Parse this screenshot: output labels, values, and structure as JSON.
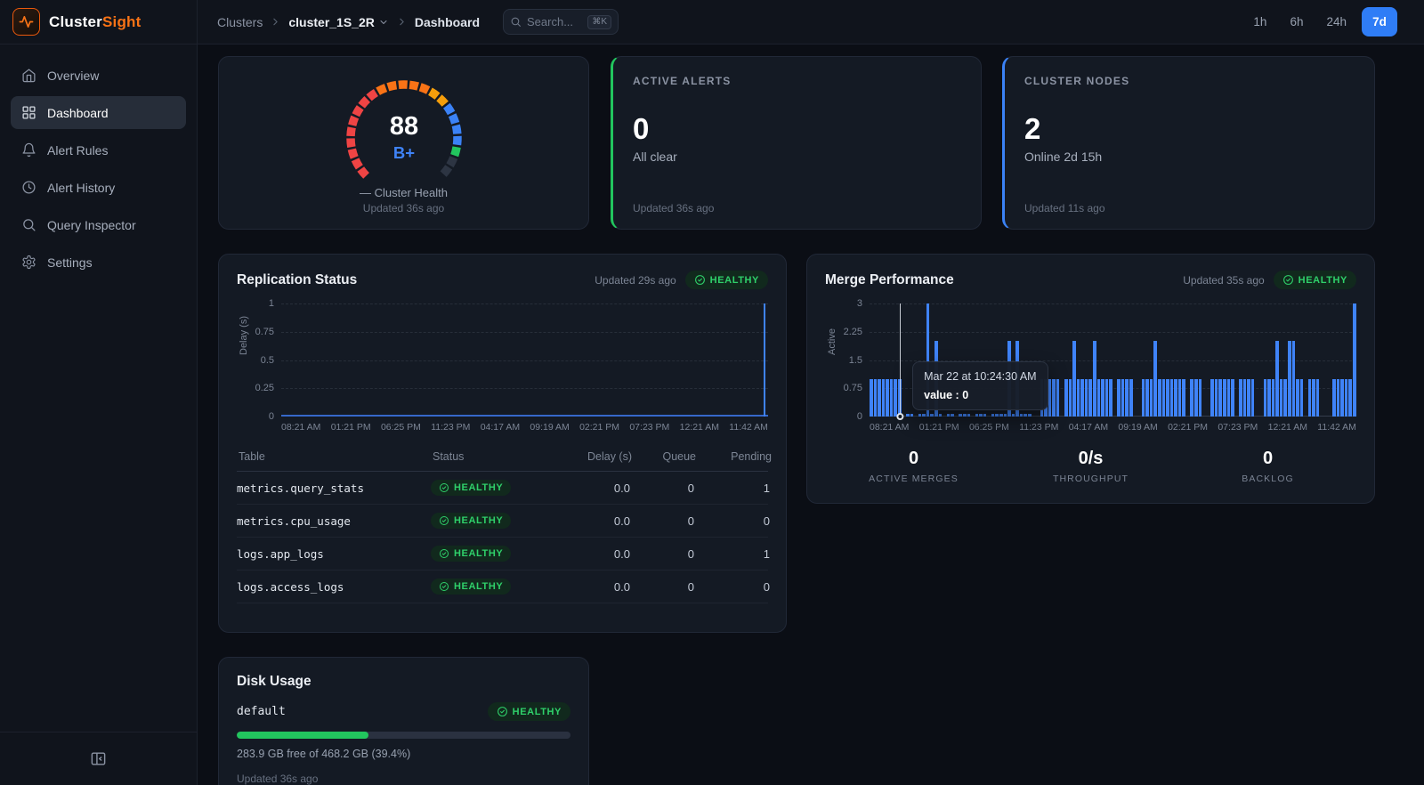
{
  "colors": {
    "blue": "#3f83f8",
    "green": "#22c55e",
    "orange": "#f97316",
    "red": "#ef4444"
  },
  "header": {
    "brand": {
      "primary": "Cluster",
      "accent": "Sight"
    },
    "breadcrumbs": {
      "root": "Clusters",
      "cluster": "cluster_1S_2R",
      "page": "Dashboard"
    },
    "search": {
      "placeholder": "Search...",
      "shortcut": "⌘K"
    },
    "time_ranges": [
      {
        "label": "1h",
        "active": false
      },
      {
        "label": "6h",
        "active": false
      },
      {
        "label": "24h",
        "active": false
      },
      {
        "label": "7d",
        "active": true
      }
    ]
  },
  "sidebar": {
    "items": [
      {
        "label": "Overview",
        "icon": "home",
        "active": false
      },
      {
        "label": "Dashboard",
        "icon": "grid",
        "active": true
      },
      {
        "label": "Alert Rules",
        "icon": "bell",
        "active": false
      },
      {
        "label": "Alert History",
        "icon": "clock",
        "active": false
      },
      {
        "label": "Query Inspector",
        "icon": "search",
        "active": false
      },
      {
        "label": "Settings",
        "icon": "gear",
        "active": false
      }
    ]
  },
  "health_card": {
    "score": "88",
    "grade": "B+",
    "caption": "— Cluster Health",
    "updated": "Updated 36s ago"
  },
  "alerts_card": {
    "title": "ACTIVE ALERTS",
    "value": "0",
    "subtitle": "All clear",
    "updated": "Updated 36s ago"
  },
  "nodes_card": {
    "title": "CLUSTER NODES",
    "value": "2",
    "subtitle": "Online 2d 15h",
    "updated": "Updated 11s ago"
  },
  "replication": {
    "title": "Replication Status",
    "updated": "Updated 29s ago",
    "status": "HEALTHY",
    "table": {
      "columns": [
        "Table",
        "Status",
        "Delay (s)",
        "Queue",
        "Pending"
      ],
      "rows": [
        {
          "table": "metrics.query_stats",
          "status": "HEALTHY",
          "delay": "0.0",
          "queue": "0",
          "pending": "1"
        },
        {
          "table": "metrics.cpu_usage",
          "status": "HEALTHY",
          "delay": "0.0",
          "queue": "0",
          "pending": "0"
        },
        {
          "table": "logs.app_logs",
          "status": "HEALTHY",
          "delay": "0.0",
          "queue": "0",
          "pending": "1"
        },
        {
          "table": "logs.access_logs",
          "status": "HEALTHY",
          "delay": "0.0",
          "queue": "0",
          "pending": "0"
        }
      ]
    }
  },
  "merge": {
    "title": "Merge Performance",
    "updated": "Updated 35s ago",
    "status": "HEALTHY",
    "tooltip": {
      "time": "Mar 22 at 10:24:30 AM",
      "value": "value : 0"
    },
    "stats": [
      {
        "value": "0",
        "label": "ACTIVE MERGES"
      },
      {
        "value": "0/s",
        "label": "THROUGHPUT"
      },
      {
        "value": "0",
        "label": "BACKLOG"
      }
    ]
  },
  "disk": {
    "title": "Disk Usage",
    "volume": "default",
    "status": "HEALTHY",
    "percent_used": 39.4,
    "detail": "283.9 GB free of 468.2 GB (39.4%)",
    "updated": "Updated 36s ago"
  },
  "chart_data": [
    {
      "id": "cluster_health_gauge",
      "type": "gauge",
      "title": "Cluster Health",
      "value": 88,
      "grade": "B+",
      "min": 0,
      "max": 100,
      "arc_degrees": 270,
      "segments": [
        "#ef4444",
        "#ef4444",
        "#ef4444",
        "#ef4444",
        "#ef4444",
        "#ef4444",
        "#ef4444",
        "#ef4444",
        "#ef4444",
        "#f97316",
        "#f97316",
        "#f97316",
        "#f97316",
        "#f97316",
        "#f59e0b",
        "#f59e0b",
        "#3b82f6",
        "#3b82f6",
        "#3b82f6",
        "#3b82f6",
        "#22c55e",
        "#2d3543",
        "#2d3543"
      ]
    },
    {
      "id": "replication_delay",
      "type": "line",
      "ylabel": "Delay (s)",
      "ylim": [
        0,
        1
      ],
      "yticks": [
        0,
        0.25,
        0.5,
        0.75,
        1
      ],
      "xticks": [
        "08:21 AM",
        "01:21 PM",
        "06:25 PM",
        "11:23 PM",
        "04:17 AM",
        "09:19 AM",
        "02:21 PM",
        "07:23 PM",
        "12:21 AM",
        "11:42 AM"
      ],
      "grid": "dashed-horizontal",
      "legend_position": "none",
      "series": [
        {
          "name": "delay",
          "color": "#3f83f8",
          "values": [
            0,
            0,
            0,
            0,
            0,
            0,
            0,
            0,
            0,
            0,
            0,
            0,
            0,
            0,
            0,
            0,
            0,
            0,
            0,
            1
          ]
        }
      ]
    },
    {
      "id": "merge_active",
      "type": "bar",
      "ylabel": "Active",
      "ylim": [
        0,
        3
      ],
      "yticks": [
        0,
        0.75,
        1.5,
        2.25,
        3
      ],
      "xticks": [
        "08:21 AM",
        "01:21 PM",
        "06:25 PM",
        "11:23 PM",
        "04:17 AM",
        "09:19 AM",
        "02:21 PM",
        "07:23 PM",
        "12:21 AM",
        "11:42 AM"
      ],
      "grid": "dashed-horizontal",
      "legend_position": "none",
      "bar_color": "#3f83f8",
      "crosshair": {
        "x_fraction": 0.063,
        "time": "Mar 22 at 10:24:30 AM",
        "value": 0
      },
      "values": [
        1,
        1,
        1,
        1,
        1,
        1,
        1,
        1,
        0,
        0.07,
        0.07,
        0,
        0.07,
        0.07,
        3,
        0.07,
        2,
        0.07,
        0,
        0.07,
        0.07,
        0,
        0.07,
        0.07,
        0.07,
        0,
        0.07,
        0.07,
        0.07,
        0,
        0.07,
        0.07,
        0.07,
        0.07,
        2,
        0.07,
        2,
        0.07,
        0.07,
        0.07,
        0,
        0,
        1,
        1,
        1,
        1,
        1,
        0,
        1,
        1,
        2,
        1,
        1,
        1,
        1,
        2,
        1,
        1,
        1,
        1,
        0,
        1,
        1,
        1,
        1,
        0,
        0,
        1,
        1,
        1,
        2,
        1,
        1,
        1,
        1,
        1,
        1,
        1,
        0,
        1,
        1,
        1,
        0,
        0,
        1,
        1,
        1,
        1,
        1,
        1,
        0,
        1,
        1,
        1,
        1,
        0,
        0,
        1,
        1,
        1,
        2,
        1,
        1,
        2,
        2,
        1,
        1,
        0,
        1,
        1,
        1,
        0,
        0,
        0,
        1,
        1,
        1,
        1,
        1,
        3
      ]
    }
  ]
}
